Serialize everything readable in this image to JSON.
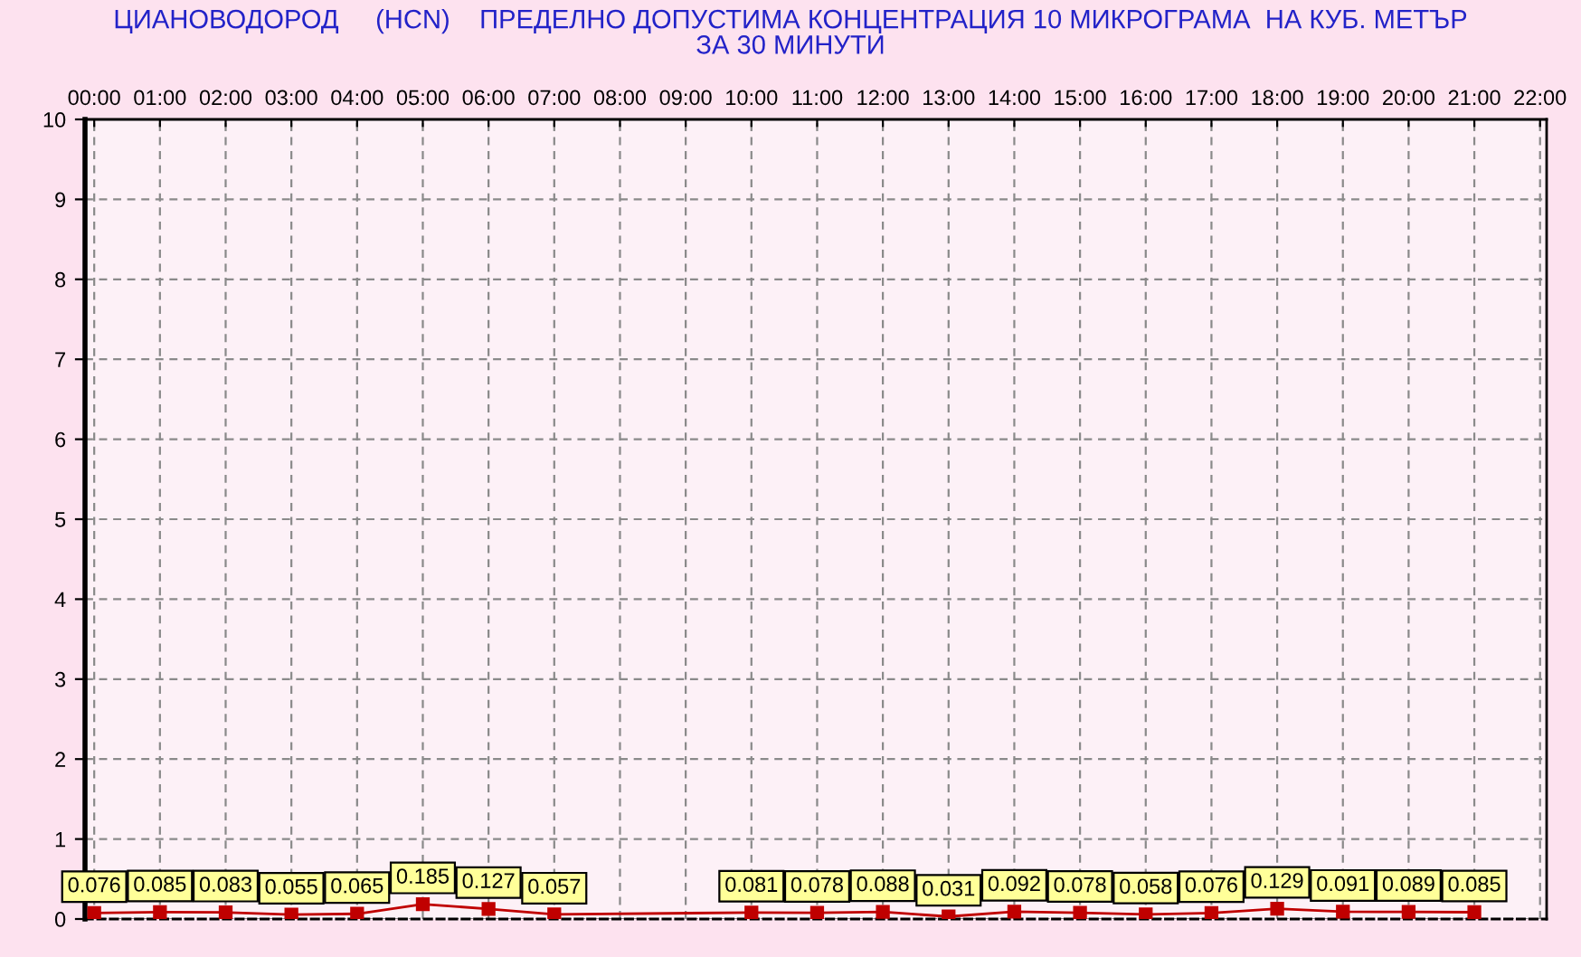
{
  "chart_data": {
    "type": "line",
    "title": "ЦИАНОВОДОРОД     (HCN)    ПРЕДЕЛНО ДОПУСТИМА КОНЦЕНТРАЦИЯ 10 МИКРОГРАМА  НА КУБ. МЕТЪР\nЗА 30 МИНУТИ",
    "x": [
      0,
      1,
      2,
      3,
      4,
      5,
      6,
      7,
      10,
      11,
      12,
      13,
      14,
      15,
      16,
      17,
      18,
      19,
      20,
      21
    ],
    "series": [
      {
        "color": "#c00000",
        "values": [
          0.076,
          0.085,
          0.083,
          0.055,
          0.065,
          0.185,
          0.127,
          0.057,
          0.081,
          0.078,
          0.088,
          0.031,
          0.092,
          0.078,
          0.058,
          0.076,
          0.129,
          0.091,
          0.089,
          0.085
        ]
      }
    ],
    "xlim": [
      -0.14,
      22.1
    ],
    "xticks": [
      {
        "value": 0,
        "label": "00:00"
      },
      {
        "value": 1,
        "label": "01:00"
      },
      {
        "value": 2,
        "label": "02:00"
      },
      {
        "value": 3,
        "label": "03:00"
      },
      {
        "value": 4,
        "label": "04:00"
      },
      {
        "value": 5,
        "label": "05:00"
      },
      {
        "value": 6,
        "label": "06:00"
      },
      {
        "value": 7,
        "label": "07:00"
      },
      {
        "value": 8,
        "label": "08:00"
      },
      {
        "value": 9,
        "label": "09:00"
      },
      {
        "value": 10,
        "label": "10:00"
      },
      {
        "value": 11,
        "label": "11:00"
      },
      {
        "value": 12,
        "label": "12:00"
      },
      {
        "value": 13,
        "label": "13:00"
      },
      {
        "value": 14,
        "label": "14:00"
      },
      {
        "value": 15,
        "label": "15:00"
      },
      {
        "value": 16,
        "label": "16:00"
      },
      {
        "value": 17,
        "label": "17:00"
      },
      {
        "value": 18,
        "label": "18:00"
      },
      {
        "value": 19,
        "label": "19:00"
      },
      {
        "value": 20,
        "label": "20:00"
      },
      {
        "value": 21,
        "label": "21:00"
      },
      {
        "value": 22,
        "label": "22:00"
      }
    ],
    "ylim": [
      0,
      10
    ],
    "yticks": [
      0,
      1,
      2,
      3,
      4,
      5,
      6,
      7,
      8,
      9,
      10
    ],
    "grid": true,
    "marker": "square",
    "line_style": "solid",
    "data_labels": true
  }
}
